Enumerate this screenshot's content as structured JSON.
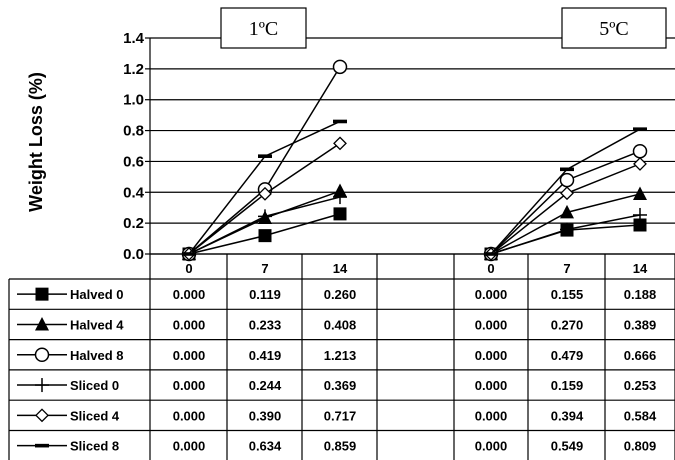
{
  "chart_data": {
    "type": "line",
    "ylabel": "Weight Loss (%)",
    "ylim": [
      0,
      1.4
    ],
    "yticks": [
      "0.0",
      "0.2",
      "0.4",
      "0.6",
      "0.8",
      "1.0",
      "1.2",
      "1.4"
    ],
    "grid": "horizontal",
    "categories": [
      "0",
      "7",
      "14"
    ],
    "panels": [
      {
        "title": "1ºC",
        "series": [
          {
            "name": "Halved 0",
            "marker": "square-filled",
            "values": [
              0.0,
              0.119,
              0.26
            ],
            "labels": [
              "0.000",
              "0.119",
              "0.260"
            ]
          },
          {
            "name": "Halved 4",
            "marker": "triangle-filled",
            "values": [
              0.0,
              0.233,
              0.408
            ],
            "labels": [
              "0.000",
              "0.233",
              "0.408"
            ]
          },
          {
            "name": "Halved 8",
            "marker": "circle-open",
            "values": [
              0.0,
              0.419,
              1.213
            ],
            "labels": [
              "0.000",
              "0.419",
              "1.213"
            ]
          },
          {
            "name": "Sliced 0",
            "marker": "plus",
            "values": [
              0.0,
              0.244,
              0.369
            ],
            "labels": [
              "0.000",
              "0.244",
              "0.369"
            ]
          },
          {
            "name": "Sliced 4",
            "marker": "diamond-open",
            "values": [
              0.0,
              0.39,
              0.717
            ],
            "labels": [
              "0.000",
              "0.390",
              "0.717"
            ]
          },
          {
            "name": "Sliced 8",
            "marker": "dash",
            "values": [
              0.0,
              0.634,
              0.859
            ],
            "labels": [
              "0.000",
              "0.634",
              "0.859"
            ]
          }
        ]
      },
      {
        "title": "5ºC",
        "series": [
          {
            "name": "Halved 0",
            "marker": "square-filled",
            "values": [
              0.0,
              0.155,
              0.188
            ],
            "labels": [
              "0.000",
              "0.155",
              "0.188"
            ]
          },
          {
            "name": "Halved 4",
            "marker": "triangle-filled",
            "values": [
              0.0,
              0.27,
              0.389
            ],
            "labels": [
              "0.000",
              "0.270",
              "0.389"
            ]
          },
          {
            "name": "Halved 8",
            "marker": "circle-open",
            "values": [
              0.0,
              0.479,
              0.666
            ],
            "labels": [
              "0.000",
              "0.479",
              "0.666"
            ]
          },
          {
            "name": "Sliced 0",
            "marker": "plus",
            "values": [
              0.0,
              0.159,
              0.253
            ],
            "labels": [
              "0.000",
              "0.159",
              "0.253"
            ]
          },
          {
            "name": "Sliced 4",
            "marker": "diamond-open",
            "values": [
              0.0,
              0.394,
              0.584
            ],
            "labels": [
              "0.000",
              "0.394",
              "0.584"
            ]
          },
          {
            "name": "Sliced 8",
            "marker": "dash",
            "values": [
              0.0,
              0.549,
              0.809
            ],
            "labels": [
              "0.000",
              "0.549",
              "0.809"
            ]
          }
        ]
      }
    ]
  }
}
